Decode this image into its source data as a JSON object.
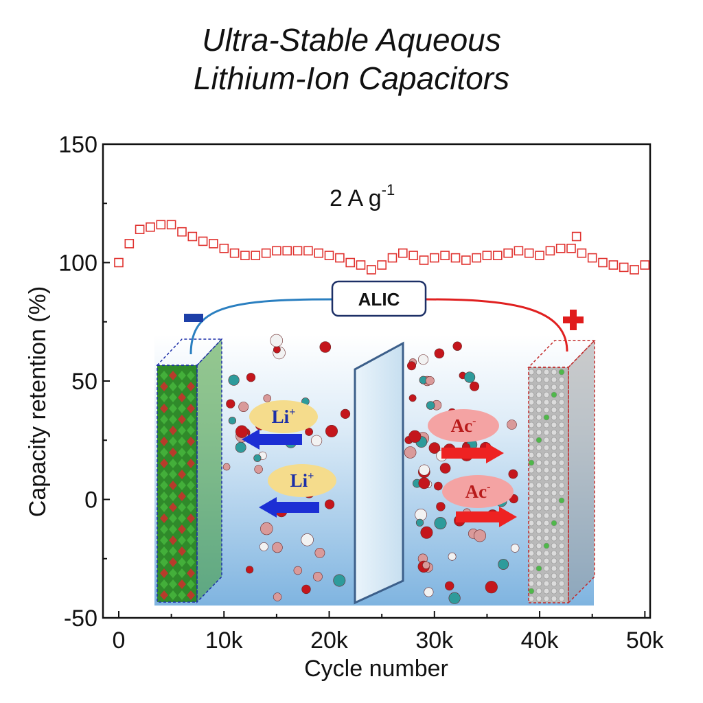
{
  "chart_data": {
    "type": "scatter",
    "title_lines": [
      "Ultra-Stable Aqueous",
      "Lithium-Ion Capacitors"
    ],
    "annotation": {
      "text": "2 A g",
      "superscript": "-1"
    },
    "xlabel": "Cycle number",
    "ylabel": "Capacity retention (%)",
    "xlim": [
      -1500,
      50500
    ],
    "ylim": [
      -50,
      150
    ],
    "xticks": [
      0,
      10000,
      20000,
      30000,
      40000,
      50000
    ],
    "xtick_labels": [
      "0",
      "10k",
      "20k",
      "30k",
      "40k",
      "50k"
    ],
    "yticks": [
      -50,
      0,
      50,
      100,
      150
    ],
    "ytick_labels": [
      "-50",
      "0",
      "50",
      "100",
      "150"
    ],
    "grid": false,
    "marker": "open-square",
    "series": [
      {
        "color": "#e0322f",
        "x": [
          0,
          1000,
          2000,
          3000,
          4000,
          5000,
          6000,
          7000,
          8000,
          9000,
          10000,
          11000,
          12000,
          13000,
          14000,
          15000,
          16000,
          17000,
          18000,
          19000,
          20000,
          21000,
          22000,
          23000,
          24000,
          25000,
          26000,
          27000,
          28000,
          29000,
          30000,
          31000,
          32000,
          33000,
          34000,
          35000,
          36000,
          37000,
          38000,
          39000,
          40000,
          41000,
          42000,
          43000,
          43500,
          44000,
          45000,
          46000,
          47000,
          48000,
          49000,
          50000
        ],
        "y": [
          100,
          108,
          114,
          115,
          116,
          116,
          113,
          111,
          109,
          108,
          106,
          104,
          103,
          103,
          104,
          105,
          105,
          105,
          105,
          104,
          103,
          102,
          100,
          99,
          97,
          99,
          102,
          104,
          103,
          101,
          102,
          103,
          102,
          101,
          102,
          103,
          103,
          104,
          105,
          104,
          103,
          105,
          106,
          106,
          111,
          104,
          102,
          100,
          99,
          98,
          97,
          99
        ]
      }
    ]
  },
  "inset": {
    "device_label": "ALIC",
    "negative_sign": "−",
    "positive_sign": "+",
    "cation_label": "Li",
    "cation_charge": "+",
    "anion_label": "Ac",
    "anion_charge": "-",
    "colors": {
      "wire_negative": "#2a7fc0",
      "wire_positive": "#e02020",
      "negative_pole": "#1d3fa8",
      "positive_pole": "#e01c1c",
      "cation_bubble": "#f5dc8c",
      "anion_bubble": "#f4a3a3",
      "cation_arrow": "#1c2fd4",
      "anion_arrow": "#ee2222"
    }
  }
}
